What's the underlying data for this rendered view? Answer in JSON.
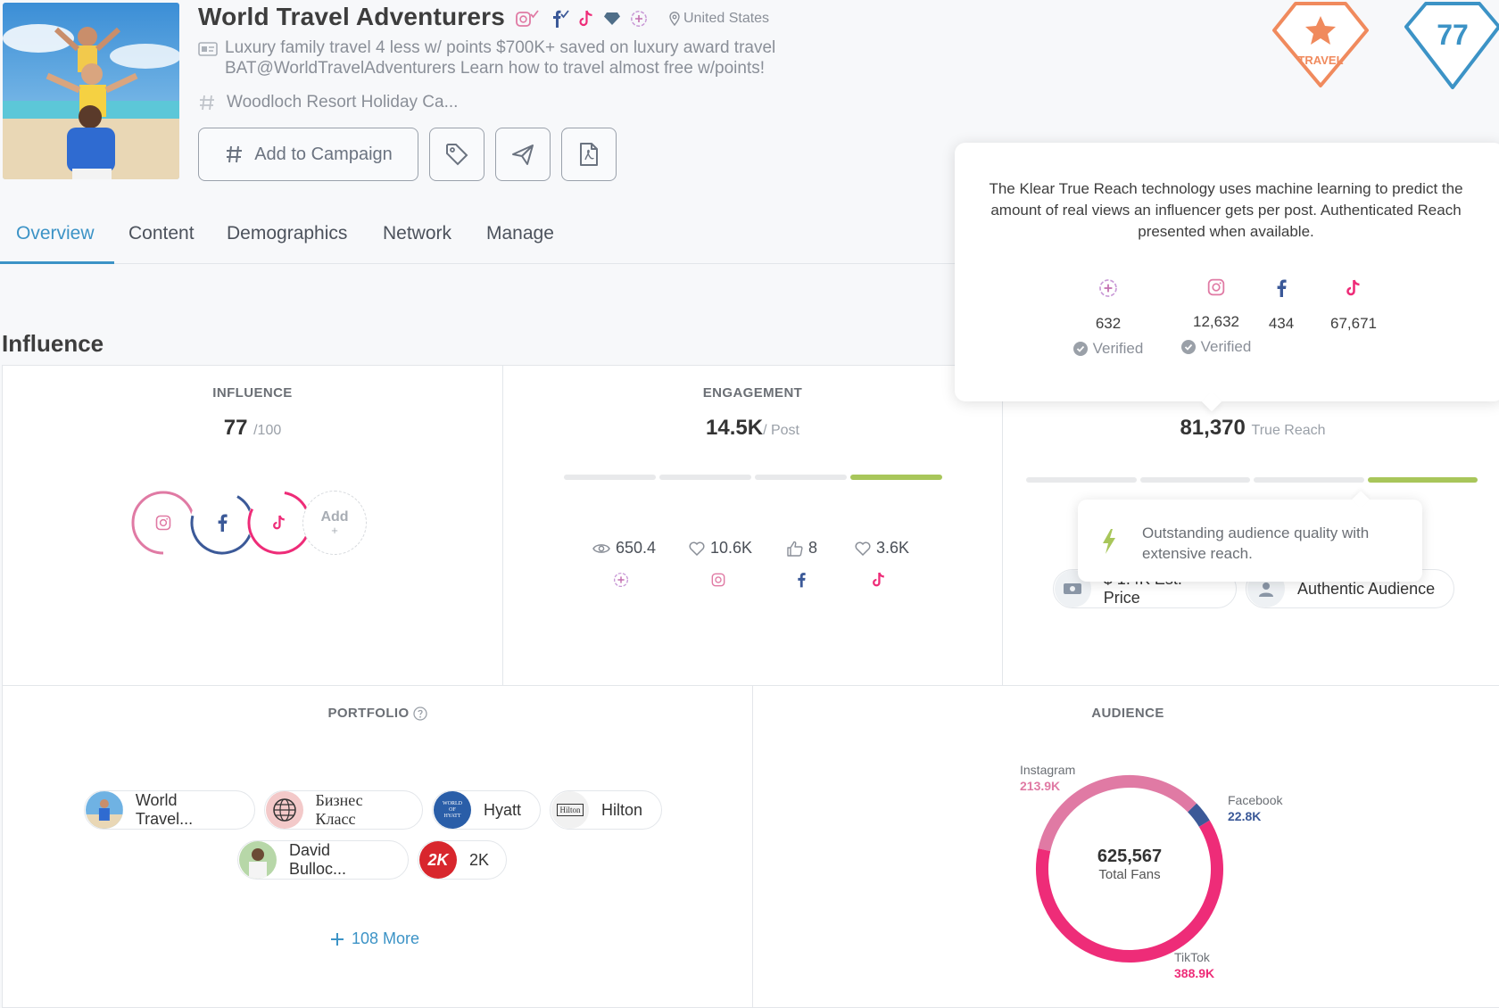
{
  "profile": {
    "name": "World Travel Adventurers",
    "location": "United States",
    "bio_line1": "Luxury family travel 4 less w/ points $700K+ saved on luxury award travel",
    "bio_line2": "BAT@WorldTravelAdventurers Learn how to travel almost free w/points!",
    "topic": "Woodloch Resort Holiday Ca..."
  },
  "actions": {
    "add_to_campaign": "Add to Campaign"
  },
  "rank": {
    "category": "TRAVEL",
    "score": "77"
  },
  "tabs": [
    "Overview",
    "Content",
    "Demographics",
    "Network",
    "Manage"
  ],
  "section_title": "Influence",
  "influence": {
    "heading": "INFLUENCE",
    "score": "77",
    "max": "/100",
    "add_label": "Add",
    "add_plus": "+"
  },
  "engagement": {
    "heading": "ENGAGEMENT",
    "value": "14.5K",
    "unit": "/ Post",
    "level": 4,
    "level_max": 4,
    "stats": [
      {
        "value": "650.4",
        "icon": "eye-icon",
        "platform": "blog-icon"
      },
      {
        "value": "10.6K",
        "icon": "heart-icon",
        "platform": "instagram-icon"
      },
      {
        "value": "8",
        "icon": "thumbs-up-icon",
        "platform": "facebook-icon"
      },
      {
        "value": "3.6K",
        "icon": "heart-icon",
        "platform": "tiktok-icon"
      }
    ]
  },
  "reach": {
    "value": "81,370",
    "unit": "True Reach",
    "level": 4,
    "level_max": 4,
    "pill1": "$ 1.4K Est. Price",
    "pill2": "Authentic Audience"
  },
  "tooltip": {
    "text": "The Klear True Reach technology uses machine learning to predict the amount of real views an influencer gets per post. Authenticated Reach presented when available.",
    "columns": [
      {
        "icon": "blog-icon",
        "value": "632",
        "verified": "Verified"
      },
      {
        "icon": "instagram-icon",
        "value": "12,632",
        "verified": "Verified"
      },
      {
        "icon": "facebook-icon",
        "value": "434",
        "verified": ""
      },
      {
        "icon": "tiktok-icon",
        "value": "67,671",
        "verified": ""
      }
    ]
  },
  "quality": {
    "text": "Outstanding audience quality with extensive reach."
  },
  "portfolio": {
    "heading": "PORTFOLIO",
    "items": [
      "World Travel...",
      "Бизнес Класс",
      "Hyatt",
      "Hilton",
      "David Bulloc...",
      "2K"
    ],
    "more": "108 More",
    "hyatt_logo_text": "WORLD OF HYATT",
    "hilton_logo_text": "Hilton",
    "twok_logo_text": "2K"
  },
  "audience": {
    "heading": "AUDIENCE",
    "total": "625,567",
    "total_label": "Total Fans",
    "segments": [
      {
        "name": "Instagram",
        "value": "213.9K",
        "fans": 213900,
        "color": "#e07aa4"
      },
      {
        "name": "Facebook",
        "value": "22.8K",
        "fans": 22800,
        "color": "#3b5998"
      },
      {
        "name": "TikTok",
        "value": "388.9K",
        "fans": 388900,
        "color": "#ee2c78"
      }
    ]
  },
  "colors": {
    "accent": "#3c93c6",
    "instagram": "#e07aa4",
    "facebook": "#3b5998",
    "tiktok": "#ee2c78",
    "good": "#a8c65a",
    "travel_badge": "#f08a5d"
  }
}
